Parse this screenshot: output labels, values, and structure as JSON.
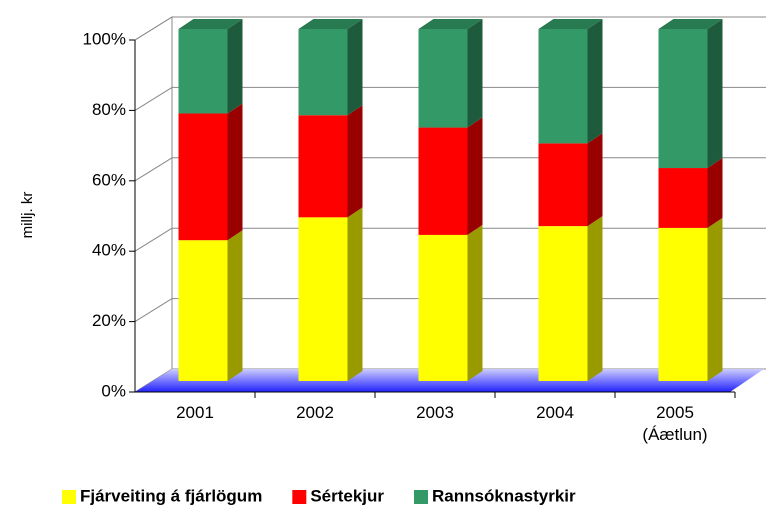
{
  "chart_data": {
    "type": "bar3d_stacked",
    "y_label": "millj. kr",
    "categories": [
      "2001",
      "2002",
      "2003",
      "2004",
      "2005\n(Áætlun)"
    ],
    "series": [
      {
        "name": "Fjárveiting á fjárlögum",
        "color": "#ffff00",
        "values": [
          40,
          46.5,
          41.5,
          44,
          43.5
        ]
      },
      {
        "name": "Sértekjur",
        "color": "#ff0000",
        "values": [
          36,
          29,
          30.5,
          23.5,
          17
        ]
      },
      {
        "name": "Rannsóknastyrkir",
        "color": "#339966",
        "values": [
          24,
          24.5,
          28,
          32.5,
          39.5
        ]
      }
    ],
    "ylim": [
      0,
      100
    ],
    "yticks": [
      {
        "value": 0,
        "label": "0%"
      },
      {
        "value": 20,
        "label": "20%"
      },
      {
        "value": 40,
        "label": "40%"
      },
      {
        "value": 60,
        "label": "60%"
      },
      {
        "value": 80,
        "label": "80%"
      },
      {
        "value": 100,
        "label": "100%"
      }
    ],
    "grid": true,
    "legend": "bottom"
  }
}
